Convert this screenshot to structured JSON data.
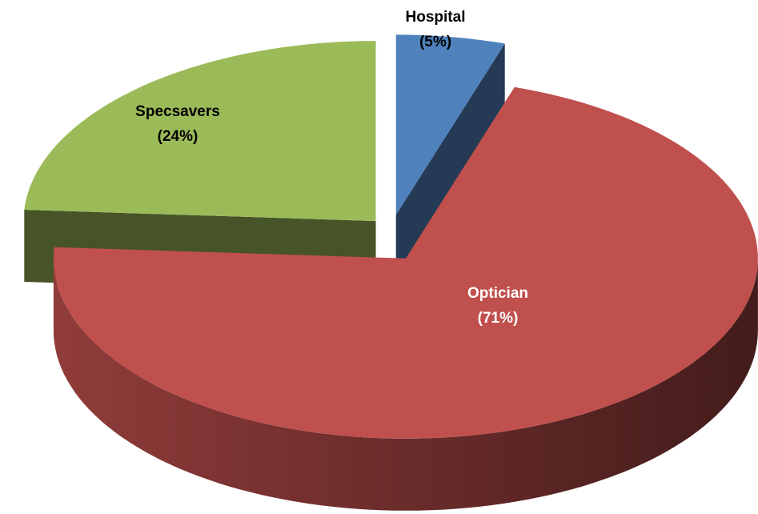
{
  "chart_data": {
    "type": "pie3d",
    "categories": [
      "Hospital",
      "Optician",
      "Specsavers"
    ],
    "values": [
      5,
      71,
      24
    ],
    "value_labels": [
      "(5%)",
      "(71%)",
      "(24%)"
    ],
    "colors": [
      "#4f81bd",
      "#c0504d",
      "#9bbb59"
    ]
  }
}
